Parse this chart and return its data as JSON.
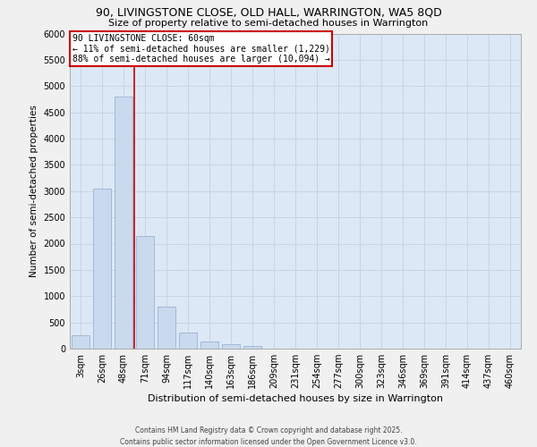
{
  "title1": "90, LIVINGSTONE CLOSE, OLD HALL, WARRINGTON, WA5 8QD",
  "title2": "Size of property relative to semi-detached houses in Warrington",
  "xlabel": "Distribution of semi-detached houses by size in Warrington",
  "ylabel": "Number of semi-detached properties",
  "footnote": "Contains HM Land Registry data © Crown copyright and database right 2025.\nContains public sector information licensed under the Open Government Licence v3.0.",
  "bar_labels": [
    "3sqm",
    "26sqm",
    "48sqm",
    "71sqm",
    "94sqm",
    "117sqm",
    "140sqm",
    "163sqm",
    "186sqm",
    "209sqm",
    "231sqm",
    "254sqm",
    "277sqm",
    "300sqm",
    "323sqm",
    "346sqm",
    "369sqm",
    "391sqm",
    "414sqm",
    "437sqm",
    "460sqm"
  ],
  "bar_values": [
    250,
    3050,
    4800,
    2150,
    800,
    310,
    140,
    80,
    45,
    0,
    0,
    0,
    0,
    0,
    0,
    0,
    0,
    0,
    0,
    0,
    0
  ],
  "bar_color": "#c9d9ee",
  "bar_edge_color": "#9bb3d4",
  "ylim_max": 6000,
  "ytick_step": 500,
  "vline_x": 2.5,
  "annotation_title": "90 LIVINGSTONE CLOSE: 60sqm",
  "annotation_line1": "← 11% of semi-detached houses are smaller (1,229)",
  "annotation_line2": "88% of semi-detached houses are larger (10,094) →",
  "annotation_box_facecolor": "#ffffff",
  "annotation_box_edgecolor": "#cc0000",
  "vline_color": "#cc0000",
  "grid_color": "#c8d4e4",
  "ax_bg_color": "#dce8f5",
  "fig_bg_color": "#f0f0f0"
}
